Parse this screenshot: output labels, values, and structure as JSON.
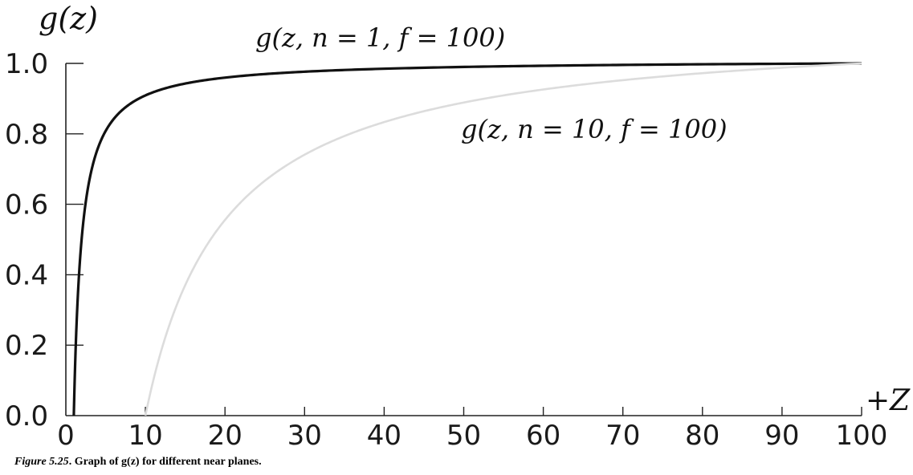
{
  "chart_data": {
    "type": "line",
    "ylabel": "g(z)",
    "xlabel": "+Z",
    "xlim": [
      0,
      100
    ],
    "ylim": [
      0.0,
      1.0
    ],
    "x_ticks": [
      "0",
      "10",
      "20",
      "30",
      "40",
      "50",
      "60",
      "70",
      "80",
      "90",
      "100"
    ],
    "y_ticks": [
      "0.0",
      "0.2",
      "0.4",
      "0.6",
      "0.8",
      "1.0"
    ],
    "grid": false,
    "series": [
      {
        "name": "g(z, n = 1, f = 100)",
        "n": 1,
        "f": 100,
        "color": "#111111",
        "x": [
          1,
          1.5,
          2,
          3,
          4,
          5,
          6,
          8,
          10,
          15,
          20,
          30,
          40,
          50,
          60,
          70,
          80,
          90,
          100
        ],
        "y": [
          0.0,
          0.337,
          0.505,
          0.673,
          0.758,
          0.808,
          0.842,
          0.884,
          0.909,
          0.943,
          0.96,
          0.976,
          0.985,
          0.99,
          0.993,
          0.996,
          0.998,
          0.999,
          1.0
        ]
      },
      {
        "name": "g(z, n = 10, f = 100)",
        "n": 10,
        "f": 100,
        "color": "#dcdcdc",
        "x": [
          10,
          12,
          15,
          20,
          25,
          30,
          40,
          50,
          60,
          70,
          80,
          90,
          100
        ],
        "y": [
          0.0,
          0.185,
          0.37,
          0.556,
          0.667,
          0.741,
          0.833,
          0.889,
          0.926,
          0.952,
          0.972,
          0.988,
          1.0
        ]
      }
    ]
  },
  "caption": {
    "figure": "Figure 5.25",
    "text": ". Graph of g(z) for different near planes."
  }
}
